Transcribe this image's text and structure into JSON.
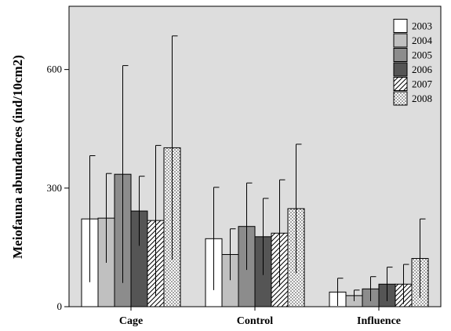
{
  "chart_data": {
    "type": "bar",
    "title": "",
    "xlabel": "",
    "ylabel": "Meiofauna abundances (ind/10cm2)",
    "ylim": [
      0,
      760
    ],
    "yticks": [
      0,
      300,
      600
    ],
    "grid": false,
    "legend_position": "top-right",
    "plot_background": "#dddddd",
    "categories": [
      "Cage",
      "Control",
      "Influence"
    ],
    "series": [
      {
        "name": "2003",
        "values": [
          222,
          172,
          37
        ],
        "error": [
          160,
          130,
          35
        ],
        "fill": "#ffffff",
        "pattern": "none"
      },
      {
        "name": "2004",
        "values": [
          224,
          132,
          28
        ],
        "error": [
          113,
          65,
          14
        ],
        "fill": "#c0c0c0",
        "pattern": "none"
      },
      {
        "name": "2005",
        "values": [
          335,
          203,
          45
        ],
        "error": [
          275,
          110,
          31
        ],
        "fill": "#8c8c8c",
        "pattern": "none"
      },
      {
        "name": "2006",
        "values": [
          242,
          177,
          57
        ],
        "error": [
          88,
          97,
          43
        ],
        "fill": "#555555",
        "pattern": "none"
      },
      {
        "name": "2007",
        "values": [
          218,
          186,
          57
        ],
        "error": [
          190,
          135,
          50
        ],
        "fill": "#ffffff",
        "pattern": "diagonal"
      },
      {
        "name": "2008",
        "values": [
          402,
          248,
          122
        ],
        "error": [
          283,
          163,
          100
        ],
        "fill": "#ffffff",
        "pattern": "dots"
      }
    ]
  }
}
